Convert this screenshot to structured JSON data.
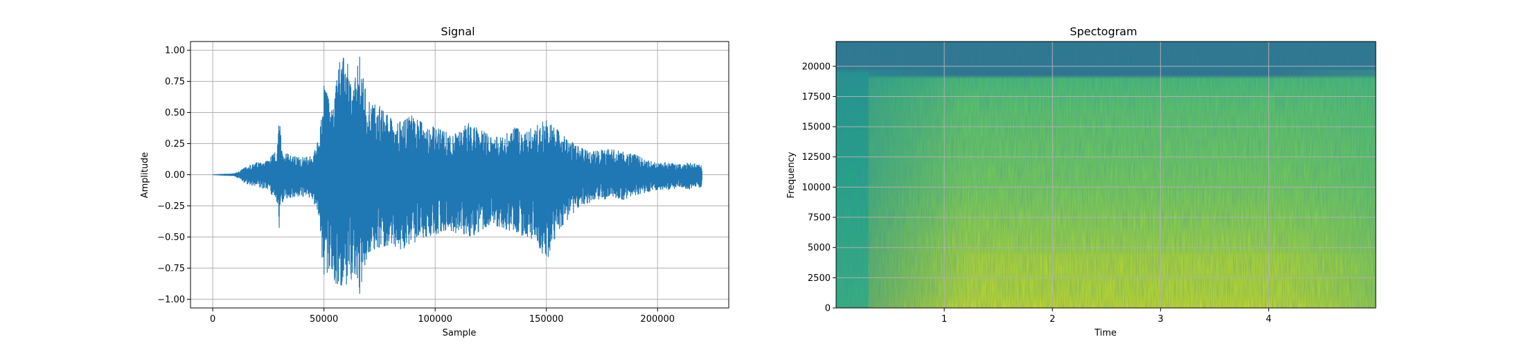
{
  "chart_data": [
    {
      "type": "line",
      "title": "Signal",
      "xlabel": "Sample",
      "ylabel": "Amplitude",
      "xlim": [
        -10000,
        232000
      ],
      "ylim": [
        -1.07,
        1.07
      ],
      "xticks": [
        0,
        50000,
        100000,
        150000,
        200000
      ],
      "xtick_labels": [
        "0",
        "50000",
        "100000",
        "150000",
        "200000"
      ],
      "yticks": [
        -1.0,
        -0.75,
        -0.5,
        -0.25,
        0.0,
        0.25,
        0.5,
        0.75,
        1.0
      ],
      "ytick_labels": [
        "−1.00",
        "−0.75",
        "−0.50",
        "−0.25",
        "0.00",
        "0.25",
        "0.50",
        "0.75",
        "1.00"
      ],
      "grid": true,
      "line_color": "#1f77b4",
      "series": [
        {
          "x": [
            0,
            10000,
            15000,
            20000,
            25000,
            29000,
            30000,
            31000,
            35000,
            40000,
            45000,
            48000,
            50000,
            53000,
            55000,
            57000,
            60000,
            63000,
            66000,
            68000,
            70000,
            75000,
            80000,
            85000,
            90000,
            95000,
            100000,
            105000,
            110000,
            115000,
            120000,
            125000,
            130000,
            135000,
            140000,
            145000,
            150000,
            155000,
            160000,
            165000,
            170000,
            175000,
            180000,
            185000,
            190000,
            195000,
            200000,
            205000,
            210000,
            215000,
            220000
          ],
          "upper": [
            0.0,
            0.01,
            0.06,
            0.1,
            0.12,
            0.2,
            0.51,
            0.2,
            0.15,
            0.14,
            0.15,
            0.3,
            0.73,
            0.55,
            0.66,
            0.9,
            0.98,
            0.68,
            0.95,
            0.76,
            0.62,
            0.55,
            0.45,
            0.42,
            0.48,
            0.4,
            0.38,
            0.35,
            0.33,
            0.42,
            0.36,
            0.32,
            0.3,
            0.38,
            0.35,
            0.4,
            0.45,
            0.36,
            0.28,
            0.22,
            0.18,
            0.2,
            0.2,
            0.18,
            0.16,
            0.12,
            0.09,
            0.1,
            0.08,
            0.1,
            0.07
          ],
          "lower": [
            0.0,
            -0.01,
            -0.07,
            -0.1,
            -0.12,
            -0.22,
            -0.46,
            -0.22,
            -0.18,
            -0.17,
            -0.2,
            -0.35,
            -0.9,
            -0.7,
            -0.87,
            -0.88,
            -0.9,
            -0.82,
            -0.96,
            -0.75,
            -0.62,
            -0.58,
            -0.56,
            -0.6,
            -0.55,
            -0.5,
            -0.48,
            -0.44,
            -0.47,
            -0.52,
            -0.45,
            -0.4,
            -0.42,
            -0.46,
            -0.5,
            -0.52,
            -0.7,
            -0.45,
            -0.35,
            -0.25,
            -0.22,
            -0.2,
            -0.18,
            -0.2,
            -0.16,
            -0.14,
            -0.12,
            -0.12,
            -0.1,
            -0.12,
            -0.1
          ]
        }
      ]
    },
    {
      "type": "heatmap",
      "title": "Spectogram",
      "xlabel": "Time",
      "ylabel": "Frequency",
      "xlim": [
        0,
        4.99
      ],
      "ylim": [
        0,
        22050
      ],
      "xticks": [
        1,
        2,
        3,
        4
      ],
      "xtick_labels": [
        "1",
        "2",
        "3",
        "4"
      ],
      "yticks": [
        0,
        2500,
        5000,
        7500,
        10000,
        12500,
        15000,
        17500,
        20000
      ],
      "ytick_labels": [
        "0",
        "2500",
        "5000",
        "7500",
        "10000",
        "12500",
        "15000",
        "17500",
        "20000"
      ],
      "grid": true,
      "colormap": "viridis",
      "description_regions": {
        "quiet_start_end_time": 0.3,
        "high_cut_frequency": 19700,
        "bright_band_frequency_max": 4500,
        "bright_time_start": 1.2
      }
    }
  ]
}
